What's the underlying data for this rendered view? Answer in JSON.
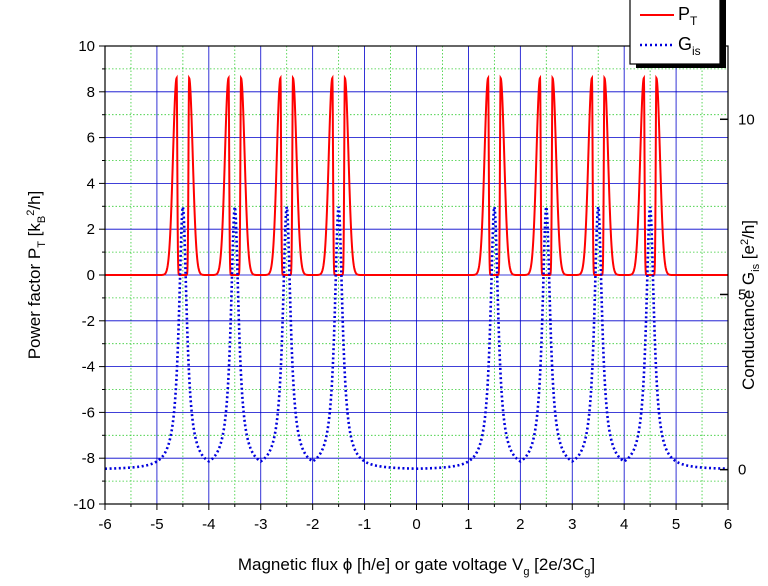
{
  "chart_data": {
    "type": "line",
    "xlabel": "Magnetic flux ϕ [h/e] or gate voltage V_g [2e/3C_g]",
    "ylabel_left": "Power factor P_T [k_B^2/h]",
    "ylabel_right": "Conductance G_is [e^2/h]",
    "xlim": [
      -6,
      6
    ],
    "ylim_left": [
      -10,
      10
    ],
    "x_ticks": [
      "-6",
      "-5",
      "-4",
      "-3",
      "-2",
      "-1",
      "0",
      "1",
      "2",
      "3",
      "4",
      "5",
      "6"
    ],
    "y_ticks_left": [
      "-10",
      "-8",
      "-6",
      "-4",
      "-2",
      "0",
      "2",
      "4",
      "6",
      "8",
      "10"
    ],
    "y_ticks_right": [
      "0",
      "5",
      "10"
    ],
    "grid": {
      "major": true,
      "major_color": "#0000cc",
      "minor": true,
      "minor_color": "#33cc33"
    },
    "legend_position": "top-right",
    "series": [
      {
        "name": "P_T",
        "axis": "left",
        "color": "#ff0000",
        "style": "solid",
        "peak_centers": [
          -4.5,
          -3.5,
          -2.5,
          -1.5,
          1.5,
          2.5,
          3.5,
          4.5
        ],
        "peak_offset": 0.12,
        "peak_value": 8.6,
        "baseline": 0
      },
      {
        "name": "G_is",
        "axis": "right",
        "color": "#0000dd",
        "style": "dotted",
        "peak_centers": [
          -4.5,
          -3.5,
          -2.5,
          -1.5,
          1.5,
          2.5,
          3.5,
          4.5
        ],
        "peak_value": 7.5,
        "baseline": 0
      }
    ],
    "legend": [
      {
        "label_main": "P",
        "label_sub": "T"
      },
      {
        "label_main": "G",
        "label_sub": "is"
      }
    ]
  }
}
